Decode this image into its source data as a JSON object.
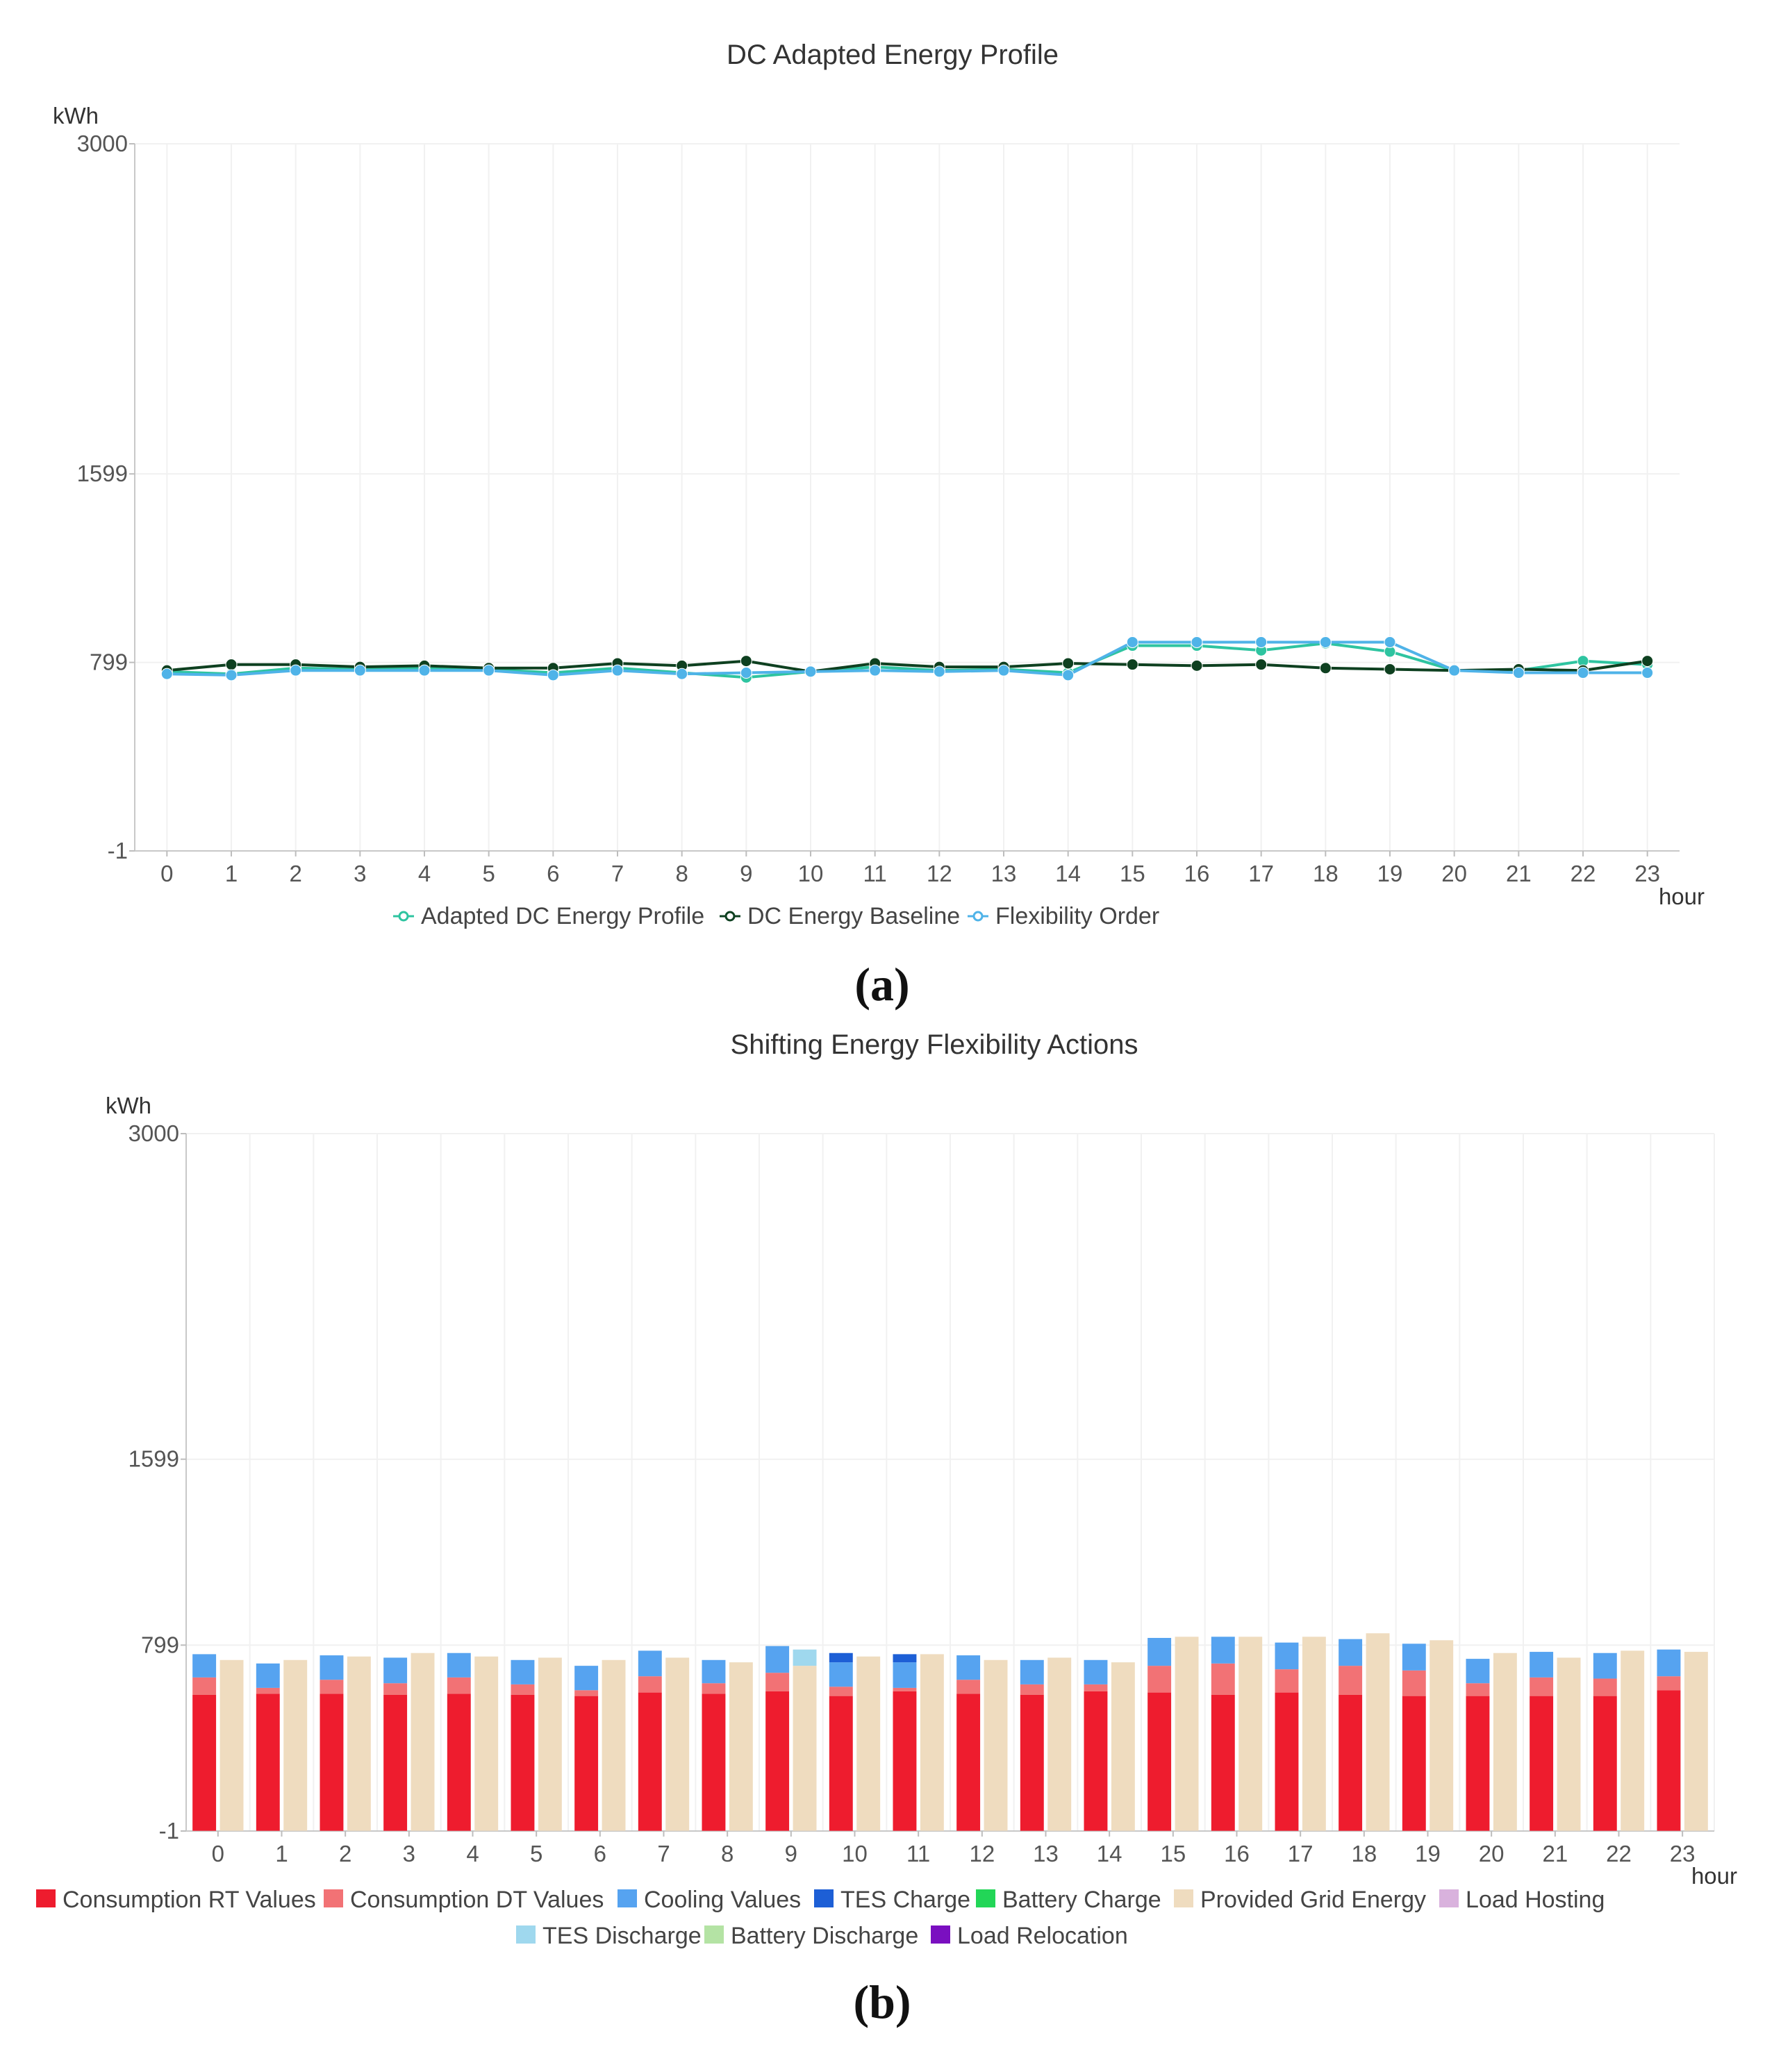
{
  "chart_data": [
    {
      "type": "line",
      "title": "DC Adapted Energy Profile",
      "ylabel": "kWh",
      "xlabel": "hour",
      "ylim": [
        -1,
        3000
      ],
      "yticks": [
        3000,
        1599,
        799,
        -1
      ],
      "x": [
        0,
        1,
        2,
        3,
        4,
        5,
        6,
        7,
        8,
        9,
        10,
        11,
        12,
        13,
        14,
        15,
        16,
        17,
        18,
        19,
        20,
        21,
        22,
        23
      ],
      "grid": true,
      "legend_position": "bottom",
      "caption": "(a)",
      "series": [
        {
          "name": "Adapted DC Energy Profile",
          "color": "#2ec4a0",
          "values": [
            760,
            750,
            775,
            770,
            775,
            770,
            755,
            775,
            755,
            735,
            760,
            780,
            765,
            770,
            755,
            870,
            870,
            850,
            880,
            845,
            765,
            765,
            805,
            790
          ]
        },
        {
          "name": "DC Energy Baseline",
          "color": "#0e4020",
          "values": [
            765,
            790,
            790,
            780,
            785,
            775,
            775,
            795,
            785,
            805,
            760,
            795,
            780,
            780,
            795,
            790,
            785,
            790,
            775,
            770,
            765,
            770,
            765,
            805
          ]
        },
        {
          "name": "Flexibility Order",
          "color": "#4fb3e8",
          "values": [
            750,
            745,
            765,
            765,
            765,
            765,
            745,
            765,
            750,
            755,
            760,
            765,
            760,
            765,
            745,
            885,
            885,
            885,
            885,
            885,
            765,
            755,
            755,
            755
          ]
        }
      ]
    },
    {
      "type": "bar",
      "title": "Shifting Energy Flexibility Actions",
      "ylabel": "kWh",
      "xlabel": "hour",
      "ylim": [
        -1,
        3000
      ],
      "yticks": [
        3000,
        1599,
        799,
        -1
      ],
      "categories": [
        0,
        1,
        2,
        3,
        4,
        5,
        6,
        7,
        8,
        9,
        10,
        11,
        12,
        13,
        14,
        15,
        16,
        17,
        18,
        19,
        20,
        21,
        22,
        23
      ],
      "grid": true,
      "legend_position": "bottom",
      "caption": "(b)",
      "series": [
        {
          "name": "Consumption RT Values",
          "color": "#ee1c2e",
          "stack": "consumption",
          "values": [
            585,
            590,
            590,
            585,
            590,
            585,
            580,
            595,
            590,
            600,
            580,
            600,
            590,
            585,
            600,
            595,
            585,
            595,
            585,
            580,
            580,
            580,
            580,
            605
          ]
        },
        {
          "name": "Consumption DT Values",
          "color": "#f27275",
          "stack": "consumption",
          "values": [
            75,
            25,
            60,
            50,
            70,
            45,
            25,
            70,
            45,
            80,
            40,
            15,
            60,
            45,
            30,
            115,
            135,
            100,
            125,
            110,
            55,
            80,
            75,
            60
          ]
        },
        {
          "name": "Cooling Values",
          "color": "#56a3f0",
          "stack": "consumption",
          "values": [
            100,
            105,
            105,
            110,
            105,
            105,
            105,
            110,
            100,
            115,
            105,
            110,
            105,
            105,
            105,
            120,
            115,
            115,
            115,
            115,
            105,
            110,
            110,
            115
          ]
        },
        {
          "name": "TES Charge",
          "color": "#1d5fd6",
          "stack": "consumption",
          "values": [
            0,
            0,
            0,
            0,
            0,
            0,
            0,
            0,
            0,
            0,
            40,
            35,
            0,
            0,
            0,
            0,
            0,
            0,
            0,
            0,
            0,
            0,
            0,
            0
          ]
        },
        {
          "name": "Battery Charge",
          "color": "#22d657",
          "stack": "consumption",
          "values": [
            0,
            0,
            0,
            0,
            0,
            0,
            0,
            0,
            0,
            0,
            0,
            0,
            0,
            0,
            0,
            0,
            0,
            0,
            0,
            0,
            0,
            0,
            0,
            0
          ]
        },
        {
          "name": "Provided Grid Energy",
          "color": "#efdcbf",
          "stack": "provided",
          "values": [
            735,
            735,
            750,
            765,
            750,
            745,
            735,
            745,
            725,
            710,
            750,
            760,
            735,
            745,
            725,
            835,
            835,
            835,
            850,
            820,
            765,
            745,
            775,
            770
          ]
        },
        {
          "name": "Load Hosting",
          "color": "#d9b2dd",
          "stack": "provided",
          "values": [
            0,
            0,
            0,
            0,
            0,
            0,
            0,
            0,
            0,
            0,
            0,
            0,
            0,
            0,
            0,
            0,
            0,
            0,
            0,
            0,
            0,
            0,
            0,
            0
          ]
        },
        {
          "name": "TES Discharge",
          "color": "#9fd8ee",
          "stack": "provided",
          "values": [
            0,
            0,
            0,
            0,
            0,
            0,
            0,
            0,
            0,
            70,
            0,
            0,
            0,
            0,
            0,
            0,
            0,
            0,
            0,
            0,
            0,
            0,
            0,
            0
          ]
        },
        {
          "name": "Battery Discharge",
          "color": "#b4e3a4",
          "stack": "provided",
          "values": [
            0,
            0,
            0,
            0,
            0,
            0,
            0,
            0,
            0,
            0,
            0,
            0,
            0,
            0,
            0,
            0,
            0,
            0,
            0,
            0,
            0,
            0,
            0,
            0
          ]
        },
        {
          "name": "Load Relocation",
          "color": "#7a0fc0",
          "stack": "provided",
          "values": [
            0,
            0,
            0,
            0,
            0,
            0,
            0,
            0,
            0,
            0,
            0,
            0,
            0,
            0,
            0,
            0,
            0,
            0,
            0,
            0,
            0,
            0,
            0,
            0
          ]
        }
      ]
    }
  ]
}
